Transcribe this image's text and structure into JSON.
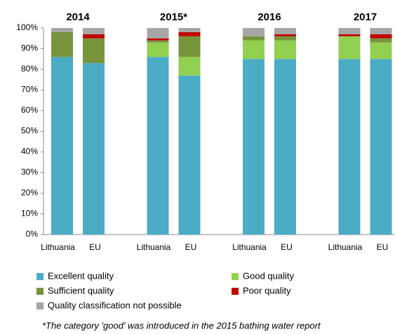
{
  "chart_data": {
    "type": "stacked_bar",
    "groups": [
      "2014",
      "2015*",
      "2016",
      "2017"
    ],
    "categories": [
      "Lithuania",
      "EU",
      "Lithuania",
      "EU",
      "Lithuania",
      "EU",
      "Lithuania",
      "EU"
    ],
    "series": [
      {
        "name": "Excellent quality",
        "color": "#4bacc6",
        "values": [
          86,
          83,
          86,
          77,
          85,
          85,
          85,
          85
        ]
      },
      {
        "name": "Good quality",
        "color": "#92d050",
        "values": [
          0,
          0,
          7,
          9,
          9,
          9,
          11,
          8
        ]
      },
      {
        "name": "Sufficient quality",
        "color": "#77933c",
        "values": [
          12,
          12,
          1,
          10,
          2,
          2,
          0,
          2
        ]
      },
      {
        "name": "Poor quality",
        "color": "#c00000",
        "values": [
          0,
          2,
          1,
          2,
          0,
          1,
          1,
          2
        ]
      },
      {
        "name": "Quality classification not possible",
        "color": "#a6a6a6",
        "values": [
          2,
          3,
          5,
          2,
          4,
          3,
          3,
          3
        ]
      }
    ],
    "ylim": [
      0,
      100
    ],
    "yticks": [
      {
        "value": 0,
        "label": "0%"
      },
      {
        "value": 10,
        "label": "10%"
      },
      {
        "value": 20,
        "label": "20%"
      },
      {
        "value": 30,
        "label": "30%"
      },
      {
        "value": 40,
        "label": "40%"
      },
      {
        "value": 50,
        "label": "50%"
      },
      {
        "value": 60,
        "label": "60%"
      },
      {
        "value": 70,
        "label": "70%"
      },
      {
        "value": 80,
        "label": "80%"
      },
      {
        "value": 90,
        "label": "90%"
      },
      {
        "value": 100,
        "label": "100%"
      }
    ],
    "annotation": "*The category 'good' was introduced  in the 2015 bathing water report"
  }
}
